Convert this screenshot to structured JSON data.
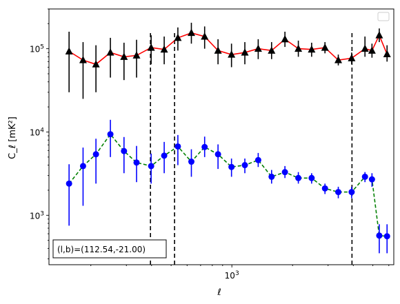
{
  "chart_data": {
    "type": "line",
    "xlabel": "ℓ",
    "ylabel": "C_ℓ [mK²]",
    "xscale": "log",
    "yscale": "log",
    "xlim": [
      124,
      6350
    ],
    "ylim": [
      255,
      300000
    ],
    "x_ticks": [
      {
        "value": 1000,
        "base": "10",
        "exp": "3"
      }
    ],
    "y_ticks": [
      {
        "value": 1000,
        "base": "10",
        "exp": "3"
      },
      {
        "value": 10000,
        "base": "10",
        "exp": "4"
      },
      {
        "value": 100000,
        "base": "10",
        "exp": "5"
      }
    ],
    "vlines": [
      395,
      520,
      3940
    ],
    "annotation": {
      "text": "(l,b)=(112.54,-21.00)"
    },
    "legend": {
      "position": "upper-right",
      "entries": []
    },
    "grid": false,
    "series": [
      {
        "marker": "triangle",
        "color": "#000000",
        "line_color": "#ff0000",
        "line_style": "solid",
        "x": [
          156,
          183,
          212,
          250,
          292,
          337,
          398,
          462,
          540,
          630,
          733,
          854,
          996,
          1160,
          1351,
          1574,
          1833,
          2136,
          2486,
          2895,
          3370,
          3925,
          4570,
          4950,
          5380,
          5880
        ],
        "y": [
          93000,
          73000,
          65000,
          90000,
          80000,
          83000,
          103000,
          98000,
          135000,
          155000,
          140000,
          95000,
          85000,
          90000,
          100000,
          95000,
          130000,
          100000,
          98000,
          103000,
          73000,
          77000,
          100000,
          95000,
          145000,
          86000
        ],
        "y_low": [
          30000,
          25000,
          30000,
          45000,
          42000,
          45000,
          65000,
          65000,
          95000,
          115000,
          100000,
          65000,
          60000,
          65000,
          75000,
          75000,
          105000,
          80000,
          80000,
          88000,
          63000,
          65000,
          80000,
          78000,
          120000,
          70000
        ],
        "y_high": [
          160000,
          120000,
          110000,
          135000,
          118000,
          128000,
          145000,
          140000,
          180000,
          205000,
          185000,
          130000,
          115000,
          120000,
          130000,
          120000,
          160000,
          125000,
          118000,
          120000,
          85000,
          90000,
          140000,
          115000,
          175000,
          110000
        ]
      },
      {
        "marker": "circle",
        "color": "#0000ff",
        "line_color": "#008000",
        "line_style": "dashed",
        "x": [
          156,
          183,
          212,
          250,
          292,
          337,
          398,
          462,
          540,
          630,
          733,
          854,
          996,
          1160,
          1351,
          1574,
          1833,
          2136,
          2486,
          2895,
          3370,
          3925,
          4570,
          4950,
          5380,
          5880
        ],
        "y": [
          2400,
          3900,
          5400,
          9400,
          5900,
          4300,
          3900,
          5200,
          6700,
          4400,
          6600,
          5400,
          3800,
          4000,
          4600,
          2900,
          3300,
          2800,
          2800,
          2100,
          1900,
          1900,
          2900,
          2700,
          570,
          560
        ],
        "y_low": [
          750,
          1300,
          2400,
          5000,
          3200,
          2500,
          2400,
          3200,
          4000,
          2900,
          5000,
          3600,
          2900,
          3200,
          3800,
          2400,
          2800,
          2400,
          2400,
          1800,
          1600,
          1600,
          2500,
          2200,
          350,
          350
        ],
        "y_high": [
          4100,
          6500,
          8300,
          14000,
          8700,
          6800,
          5500,
          7600,
          9200,
          6200,
          8800,
          7100,
          4800,
          4800,
          5600,
          3500,
          3900,
          3300,
          3200,
          2400,
          2200,
          2200,
          3300,
          3200,
          780,
          780
        ]
      }
    ]
  }
}
